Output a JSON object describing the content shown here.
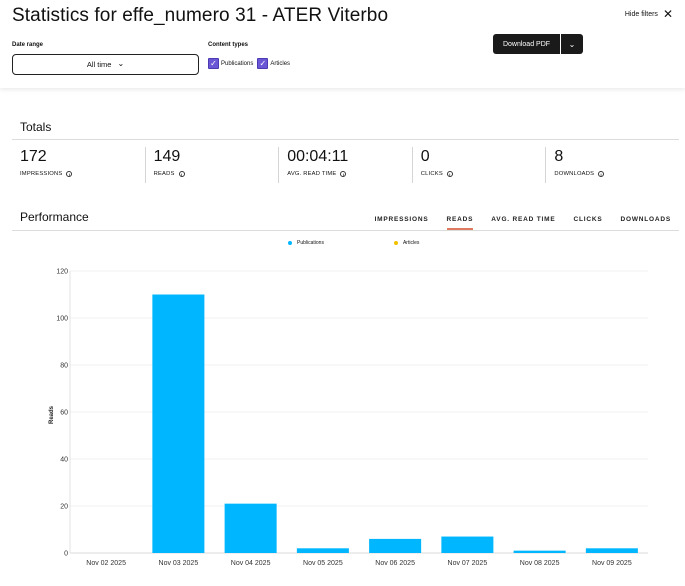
{
  "header": {
    "title": "Statistics for effe_numero 31 - ATER Viterbo",
    "hide_filters": "Hide filters",
    "date_range_label": "Date range",
    "date_range_value": "All time",
    "content_types_label": "Content types",
    "content_types": [
      {
        "label": "Publications",
        "checked": true
      },
      {
        "label": "Articles",
        "checked": true
      }
    ],
    "download_pdf": "Download PDF"
  },
  "totals": {
    "title": "Totals",
    "stats": [
      {
        "value": "172",
        "label": "IMPRESSIONS"
      },
      {
        "value": "149",
        "label": "READS"
      },
      {
        "value": "00:04:11",
        "label": "AVG. READ TIME"
      },
      {
        "value": "0",
        "label": "CLICKS"
      },
      {
        "value": "8",
        "label": "DOWNLOADS"
      }
    ]
  },
  "performance": {
    "title": "Performance",
    "tabs": [
      "IMPRESSIONS",
      "READS",
      "AVG. READ TIME",
      "CLICKS",
      "DOWNLOADS"
    ],
    "active_tab": "READS"
  },
  "colors": {
    "publications": "#00b7ff",
    "articles": "#f2c200",
    "accent_tab": "#e07a5f",
    "checkbox": "#6a57d6"
  },
  "chart_data": {
    "type": "bar",
    "title": "",
    "xlabel": "",
    "ylabel": "Reads",
    "ylim": [
      0,
      120
    ],
    "yticks": [
      0,
      20,
      40,
      60,
      80,
      100,
      120
    ],
    "categories": [
      "Nov 02 2025",
      "Nov 03 2025",
      "Nov 04 2025",
      "Nov 05 2025",
      "Nov 06 2025",
      "Nov 07 2025",
      "Nov 08 2025",
      "Nov 09 2025"
    ],
    "series": [
      {
        "name": "Publications",
        "values": [
          0,
          110,
          21,
          2,
          6,
          7,
          1,
          2
        ]
      },
      {
        "name": "Articles",
        "values": [
          0,
          0,
          0,
          0,
          0,
          0,
          0,
          0
        ]
      }
    ],
    "legend": "top-center",
    "grid": true
  }
}
